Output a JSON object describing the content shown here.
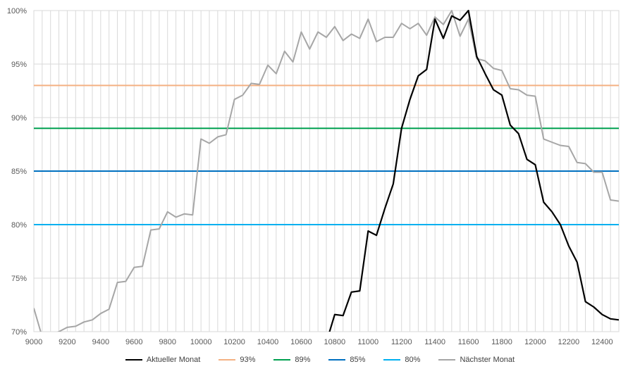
{
  "chart_data": {
    "type": "line",
    "xlim": [
      9000,
      12500
    ],
    "ylim": [
      70,
      100
    ],
    "x_ticks": [
      9000,
      9200,
      9400,
      9600,
      9800,
      10000,
      10200,
      10400,
      10600,
      10800,
      11000,
      11200,
      11400,
      11600,
      11800,
      12000,
      12200,
      12400
    ],
    "x_tick_labels": [
      "9000",
      "9200",
      "9400",
      "9600",
      "9800",
      "10000",
      "10200",
      "10400",
      "10600",
      "10800",
      "11000",
      "11200",
      "11400",
      "11600",
      "11800",
      "12000",
      "12200",
      "12400"
    ],
    "y_ticks": [
      70,
      75,
      80,
      85,
      90,
      95,
      100
    ],
    "y_tick_labels": [
      "70%",
      "75%",
      "80%",
      "85%",
      "90%",
      "95%",
      "100%"
    ],
    "grid": "vertical and horizontal",
    "legend_position": "bottom",
    "series": [
      {
        "name": "Aktueller Monat",
        "color": "#000000",
        "points": [
          [
            10700,
            67.0
          ],
          [
            10750,
            69.0
          ],
          [
            10800,
            71.6
          ],
          [
            10850,
            71.5
          ],
          [
            10900,
            73.7
          ],
          [
            10950,
            73.8
          ],
          [
            11000,
            79.4
          ],
          [
            11050,
            79.0
          ],
          [
            11100,
            81.5
          ],
          [
            11150,
            83.8
          ],
          [
            11200,
            89.0
          ],
          [
            11250,
            91.7
          ],
          [
            11300,
            93.9
          ],
          [
            11350,
            94.5
          ],
          [
            11400,
            99.2
          ],
          [
            11450,
            97.4
          ],
          [
            11500,
            99.5
          ],
          [
            11550,
            99.1
          ],
          [
            11600,
            100.0
          ],
          [
            11650,
            95.7
          ],
          [
            11700,
            94.1
          ],
          [
            11750,
            92.6
          ],
          [
            11800,
            92.1
          ],
          [
            11850,
            89.3
          ],
          [
            11900,
            88.5
          ],
          [
            11950,
            86.1
          ],
          [
            12000,
            85.6
          ],
          [
            12050,
            82.1
          ],
          [
            12100,
            81.2
          ],
          [
            12150,
            80.0
          ],
          [
            12200,
            78.0
          ],
          [
            12250,
            76.5
          ],
          [
            12300,
            72.8
          ],
          [
            12350,
            72.3
          ],
          [
            12400,
            71.6
          ],
          [
            12450,
            71.2
          ],
          [
            12500,
            71.1
          ]
        ]
      },
      {
        "name": "93%",
        "color": "#f4b183",
        "points": [
          [
            9000,
            93
          ],
          [
            12500,
            93
          ]
        ]
      },
      {
        "name": "89%",
        "color": "#00a050",
        "points": [
          [
            9000,
            89
          ],
          [
            12500,
            89
          ]
        ]
      },
      {
        "name": "85%",
        "color": "#0070c0",
        "points": [
          [
            9000,
            85
          ],
          [
            12500,
            85
          ]
        ]
      },
      {
        "name": "80%",
        "color": "#00b0f0",
        "points": [
          [
            9000,
            80
          ],
          [
            12500,
            80
          ]
        ]
      },
      {
        "name": "Nächster Monat",
        "color": "#a6a6a6",
        "points": [
          [
            9000,
            72.2
          ],
          [
            9050,
            69.5
          ],
          [
            9100,
            69.7
          ],
          [
            9150,
            70.0
          ],
          [
            9200,
            70.4
          ],
          [
            9250,
            70.5
          ],
          [
            9300,
            70.9
          ],
          [
            9350,
            71.1
          ],
          [
            9400,
            71.7
          ],
          [
            9450,
            72.1
          ],
          [
            9500,
            74.6
          ],
          [
            9550,
            74.7
          ],
          [
            9600,
            76.0
          ],
          [
            9650,
            76.1
          ],
          [
            9700,
            79.5
          ],
          [
            9750,
            79.6
          ],
          [
            9800,
            81.2
          ],
          [
            9850,
            80.7
          ],
          [
            9900,
            81.0
          ],
          [
            9950,
            80.9
          ],
          [
            10000,
            88.0
          ],
          [
            10050,
            87.6
          ],
          [
            10100,
            88.2
          ],
          [
            10150,
            88.4
          ],
          [
            10200,
            91.7
          ],
          [
            10250,
            92.1
          ],
          [
            10300,
            93.2
          ],
          [
            10350,
            93.1
          ],
          [
            10400,
            94.9
          ],
          [
            10450,
            94.1
          ],
          [
            10500,
            96.2
          ],
          [
            10550,
            95.2
          ],
          [
            10600,
            98.0
          ],
          [
            10650,
            96.4
          ],
          [
            10700,
            98.0
          ],
          [
            10750,
            97.5
          ],
          [
            10800,
            98.5
          ],
          [
            10850,
            97.2
          ],
          [
            10900,
            97.8
          ],
          [
            10950,
            97.4
          ],
          [
            11000,
            99.2
          ],
          [
            11050,
            97.1
          ],
          [
            11100,
            97.5
          ],
          [
            11150,
            97.5
          ],
          [
            11200,
            98.8
          ],
          [
            11250,
            98.3
          ],
          [
            11300,
            98.8
          ],
          [
            11350,
            97.7
          ],
          [
            11400,
            99.4
          ],
          [
            11450,
            98.7
          ],
          [
            11500,
            100.0
          ],
          [
            11550,
            97.6
          ],
          [
            11600,
            99.2
          ],
          [
            11650,
            95.5
          ],
          [
            11700,
            95.3
          ],
          [
            11750,
            94.6
          ],
          [
            11800,
            94.4
          ],
          [
            11850,
            92.7
          ],
          [
            11900,
            92.6
          ],
          [
            11950,
            92.1
          ],
          [
            12000,
            92.0
          ],
          [
            12050,
            88.0
          ],
          [
            12100,
            87.7
          ],
          [
            12150,
            87.4
          ],
          [
            12200,
            87.3
          ],
          [
            12250,
            85.8
          ],
          [
            12300,
            85.7
          ],
          [
            12350,
            84.9
          ],
          [
            12400,
            84.9
          ],
          [
            12450,
            82.3
          ],
          [
            12500,
            82.2
          ]
        ]
      }
    ]
  }
}
